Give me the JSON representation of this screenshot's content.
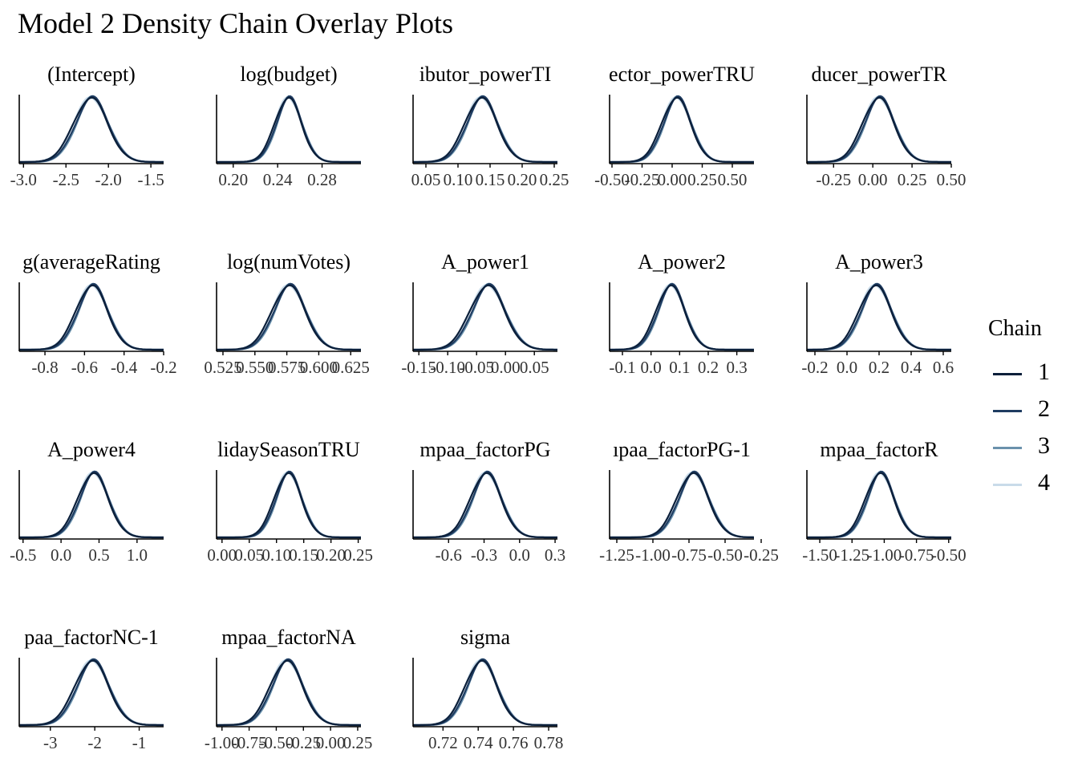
{
  "title": "Model 2 Density Chain Overlay Plots",
  "legend": {
    "title": "Chain",
    "entries": [
      {
        "label": "1",
        "color": "#0b1f3a"
      },
      {
        "label": "2",
        "color": "#1f3c61"
      },
      {
        "label": "3",
        "color": "#6a91ac"
      },
      {
        "label": "4",
        "color": "#c9dbe9"
      }
    ]
  },
  "chart_data": {
    "type": "line",
    "description_kind": "density overlay per parameter, 4 chains",
    "panels": [
      {
        "label": "(Intercept)",
        "xlim": [
          -3.05,
          -1.35
        ],
        "ticks": [
          -3.0,
          -2.5,
          -2.0,
          -1.5
        ],
        "tick_labels": [
          "-3.0",
          "-2.5",
          "-2.0",
          "-1.5"
        ],
        "mean": -2.2,
        "sd": 0.2
      },
      {
        "label": "log(budget)",
        "xlim": [
          0.185,
          0.315
        ],
        "ticks": [
          0.2,
          0.24,
          0.28
        ],
        "tick_labels": [
          "0.20",
          "0.24",
          "0.28"
        ],
        "mean": 0.25,
        "sd": 0.012
      },
      {
        "label": "ibutor_powerTI",
        "xlim": [
          0.03,
          0.255
        ],
        "ticks": [
          0.05,
          0.1,
          0.15,
          0.2,
          0.25
        ],
        "tick_labels": [
          "0.05",
          "0.10",
          "0.15",
          "0.20",
          "0.25"
        ],
        "mean": 0.137,
        "sd": 0.025
      },
      {
        "label": "ector_powerTRU",
        "xlim": [
          -0.52,
          0.68
        ],
        "ticks": [
          -0.5,
          -0.25,
          0.0,
          0.25,
          0.5
        ],
        "tick_labels": [
          "-0.50",
          "-0.25",
          "0.00",
          "0.25",
          "0.50"
        ],
        "mean": 0.04,
        "sd": 0.12
      },
      {
        "label": "ducer_powerTR",
        "xlim": [
          -0.42,
          0.5
        ],
        "ticks": [
          -0.25,
          0.0,
          0.25,
          0.5
        ],
        "tick_labels": [
          "-0.25",
          "0.00",
          "0.25",
          "0.50"
        ],
        "mean": 0.04,
        "sd": 0.1
      },
      {
        "label": "g(averageRating",
        "xlim": [
          -0.93,
          -0.2
        ],
        "ticks": [
          -0.8,
          -0.6,
          -0.4,
          -0.2
        ],
        "tick_labels": [
          "-0.8",
          "-0.6",
          "-0.4",
          "-0.2"
        ],
        "mean": -0.56,
        "sd": 0.08
      },
      {
        "label": "log(numVotes)",
        "xlim": [
          0.52,
          0.633
        ],
        "ticks": [
          0.525,
          0.55,
          0.575,
          0.6,
          0.625
        ],
        "tick_labels": [
          "0.525",
          "0.550",
          "0.575",
          "0.600",
          "0.625"
        ],
        "mean": 0.577,
        "sd": 0.013
      },
      {
        "label": "A_power1",
        "xlim": [
          -0.16,
          0.09
        ],
        "ticks": [
          -0.15,
          -0.1,
          -0.05,
          0.0,
          0.05
        ],
        "tick_labels": [
          "-0.15",
          "-0.10",
          "-0.05",
          "0.00",
          "0.05"
        ],
        "mean": -0.03,
        "sd": 0.03
      },
      {
        "label": "A_power2",
        "xlim": [
          -0.145,
          0.36
        ],
        "ticks": [
          -0.1,
          0.0,
          0.1,
          0.2,
          0.3
        ],
        "tick_labels": [
          "-0.1",
          "0.0",
          "0.1",
          "0.2",
          "0.3"
        ],
        "mean": 0.07,
        "sd": 0.05
      },
      {
        "label": "A_power3",
        "xlim": [
          -0.25,
          0.65
        ],
        "ticks": [
          -0.2,
          0.0,
          0.2,
          0.4,
          0.6
        ],
        "tick_labels": [
          "-0.2",
          "0.0",
          "0.2",
          "0.4",
          "0.6"
        ],
        "mean": 0.18,
        "sd": 0.1
      },
      {
        "label": "A_power4",
        "xlim": [
          -0.55,
          1.35
        ],
        "ticks": [
          -0.5,
          0.0,
          0.5,
          1.0
        ],
        "tick_labels": [
          "-0.5",
          "0.0",
          "0.5",
          "1.0"
        ],
        "mean": 0.43,
        "sd": 0.2
      },
      {
        "label": "lidaySeasonTRU",
        "xlim": [
          -0.01,
          0.255
        ],
        "ticks": [
          0.0,
          0.05,
          0.1,
          0.15,
          0.2,
          0.25
        ],
        "tick_labels": [
          "0.00",
          "0.05",
          "0.10",
          "0.15",
          "0.20",
          "0.25"
        ],
        "mean": 0.122,
        "sd": 0.025
      },
      {
        "label": "mpaa_factorPG",
        "xlim": [
          -0.9,
          0.32
        ],
        "ticks": [
          -0.6,
          -0.3,
          0.0,
          0.3
        ],
        "tick_labels": [
          "-0.6",
          "-0.3",
          "0.0",
          "0.3"
        ],
        "mean": -0.28,
        "sd": 0.13
      },
      {
        "label": "ıpaa_factorPG-1",
        "xlim": [
          -1.3,
          -0.3
        ],
        "ticks": [
          -1.25,
          -1.0,
          -0.75,
          -0.5,
          -0.25
        ],
        "tick_labels": [
          "-1.25",
          "-1.00",
          "-0.75",
          "-0.50",
          "-0.25"
        ],
        "mean": -0.72,
        "sd": 0.11
      },
      {
        "label": "mpaa_factorR",
        "xlim": [
          -1.6,
          -0.48
        ],
        "ticks": [
          -1.5,
          -1.25,
          -1.0,
          -0.75,
          -0.5
        ],
        "tick_labels": [
          "-1.50",
          "-1.25",
          "-1.00",
          "-0.75",
          "-0.50"
        ],
        "mean": -1.03,
        "sd": 0.11
      },
      {
        "label": "paa_factorNC-1",
        "xlim": [
          -3.7,
          -0.45
        ],
        "ticks": [
          -3.0,
          -2.0,
          -1.0
        ],
        "tick_labels": [
          "-3",
          "-2",
          "-1"
        ],
        "mean": -2.05,
        "sd": 0.38
      },
      {
        "label": "mpaa_factorNA",
        "xlim": [
          -1.05,
          0.28
        ],
        "ticks": [
          -1.0,
          -0.75,
          -0.5,
          -0.25,
          0.0,
          0.25
        ],
        "tick_labels": [
          "-1.00",
          "-0.75",
          "-0.50",
          "-0.25",
          "0.00",
          "0.25"
        ],
        "mean": -0.4,
        "sd": 0.15
      },
      {
        "label": "sigma",
        "xlim": [
          0.703,
          0.785
        ],
        "ticks": [
          0.72,
          0.74,
          0.76,
          0.78
        ],
        "tick_labels": [
          "0.72",
          "0.74",
          "0.76",
          "0.78"
        ],
        "mean": 0.742,
        "sd": 0.009
      }
    ]
  }
}
